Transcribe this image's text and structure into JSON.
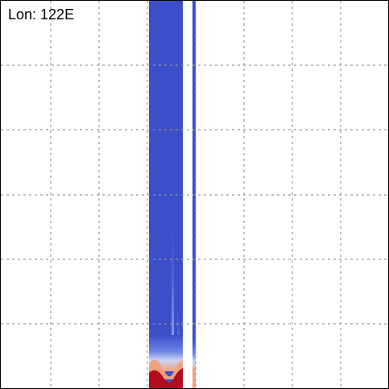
{
  "plot": {
    "label": "Lon: 122E",
    "grid": "dashed",
    "colors": {
      "cold": "#3b4fc9",
      "cool": "#7f9bf0",
      "pale": "#c9d3f5",
      "warm": "#f2a27e",
      "hot": "#b40b1e",
      "grid": "#9a9a9a"
    }
  }
}
